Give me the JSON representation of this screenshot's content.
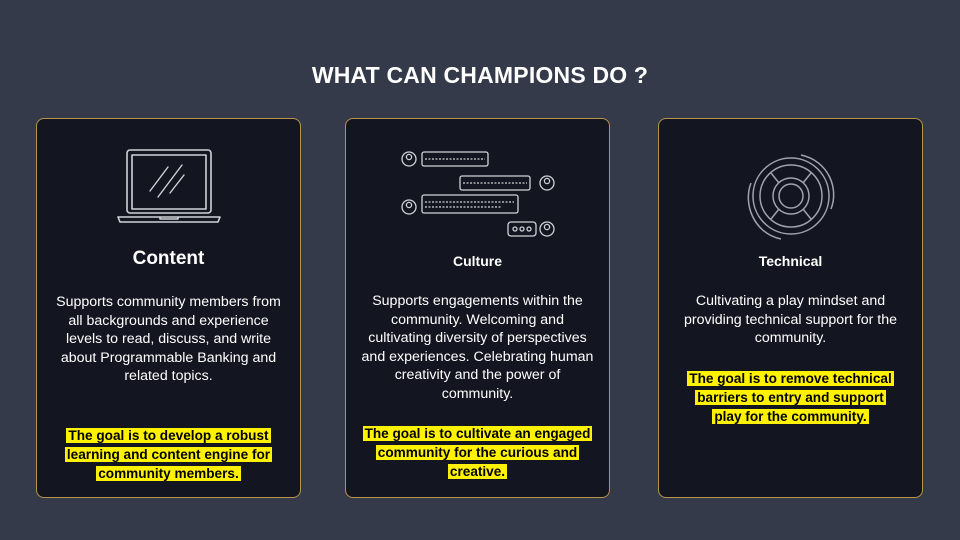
{
  "page": {
    "title": "WHAT CAN CHAMPIONS DO ?"
  },
  "cards": [
    {
      "icon": "laptop-icon",
      "heading": "Content",
      "description": "Supports community members from all backgrounds and experience levels to read, discuss, and write about Programmable Banking and related topics.",
      "goal": "The goal is to develop a robust learning and content engine for community members."
    },
    {
      "icon": "chat-bubbles-icon",
      "heading": "Culture",
      "description": "Supports engagements within the community. Welcoming and cultivating diversity of perspectives and experiences. Celebrating human creativity and the power of community.",
      "goal": "The goal is to cultivate an engaged community for the curious and creative."
    },
    {
      "icon": "lifebuoy-icon",
      "heading": "Technical",
      "description": "Cultivating a play mindset and providing technical support for the community.",
      "goal": "The goal is to remove technical barriers to entry and support play for the community."
    }
  ],
  "colors": {
    "background": "#343a4a",
    "card": "#131620",
    "border": "#b8934a",
    "highlight": "#fff200"
  }
}
